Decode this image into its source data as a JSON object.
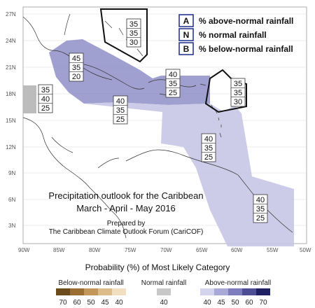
{
  "map": {
    "title_line1": "Precipitation outlook for the Caribbean",
    "title_line2": "March - April - May 2016",
    "prepared_line1": "Prepared by",
    "prepared_line2": "The Caribbean Climate Outlook Forum (CariCOF)",
    "lat_labels": [
      "27N",
      "24N",
      "21N",
      "18N",
      "15N",
      "12N",
      "9N",
      "6N",
      "3N"
    ],
    "lon_labels": [
      "90W",
      "85W",
      "80W",
      "75W",
      "70W",
      "65W",
      "60W",
      "55W",
      "50W"
    ]
  },
  "key": [
    {
      "letter": "A",
      "text": "% above-normal rainfall"
    },
    {
      "letter": "N",
      "text": "% normal rainfall"
    },
    {
      "letter": "B",
      "text": "% below-normal rainfall"
    }
  ],
  "regions": [
    {
      "id": "bahamas-north",
      "A": "35",
      "N": "35",
      "B": "30"
    },
    {
      "id": "western-cuba",
      "A": "45",
      "N": "35",
      "B": "20"
    },
    {
      "id": "hispaniola",
      "A": "40",
      "N": "35",
      "B": "25"
    },
    {
      "id": "leeward-islands",
      "A": "35",
      "N": "35",
      "B": "30"
    },
    {
      "id": "belize",
      "A": "35",
      "N": "40",
      "B": "25"
    },
    {
      "id": "caribbean-sea",
      "A": "40",
      "N": "35",
      "B": "25"
    },
    {
      "id": "windward-islands",
      "A": "40",
      "N": "35",
      "B": "25"
    },
    {
      "id": "guianas",
      "A": "40",
      "N": "35",
      "B": "25"
    }
  ],
  "legend": {
    "heading": "Probability (%) of Most Likely Category",
    "below": {
      "label": "Below-normal rainfall",
      "ticks": [
        "70",
        "60",
        "50",
        "45",
        "40"
      ],
      "colors": [
        "#6b4a1c",
        "#9a6d33",
        "#c3965c",
        "#dcbc8a",
        "#f1dfc0"
      ]
    },
    "normal": {
      "label": "Normal rainfall",
      "ticks": [
        "40"
      ],
      "colors": [
        "#c8c8c8"
      ]
    },
    "above": {
      "label": "Above-normal rainfall",
      "ticks": [
        "40",
        "45",
        "50",
        "60",
        "70"
      ],
      "colors": [
        "#d3d3ee",
        "#a9a9d8",
        "#7d7dbd",
        "#4e4e97",
        "#1f1f63"
      ]
    }
  }
}
